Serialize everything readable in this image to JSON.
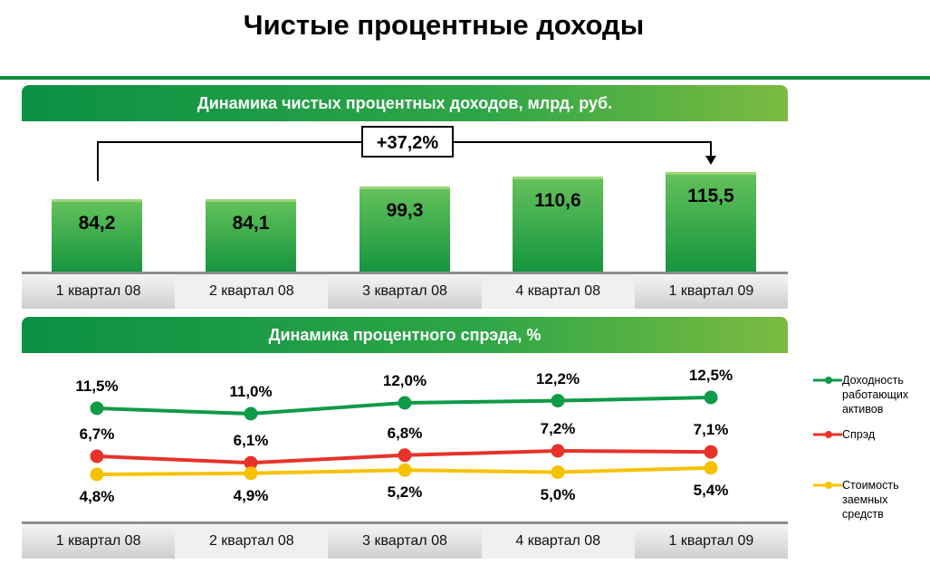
{
  "title": "Чистые процентные доходы",
  "chart_data": [
    {
      "type": "bar",
      "title": "Динамика чистых процентных доходов, млрд. руб.",
      "categories": [
        "1 квартал 08",
        "2 квартал 08",
        "3 квартал 08",
        "4 квартал 08",
        "1 квартал 09"
      ],
      "values": [
        84.2,
        84.1,
        99.3,
        110.6,
        115.5
      ],
      "value_labels": [
        "84,2",
        "84,1",
        "99,3",
        "110,6",
        "115,5"
      ],
      "annotation": "+37,2%",
      "color": "#1f9a44"
    },
    {
      "type": "line",
      "title": "Динамика процентного спрэда, %",
      "categories": [
        "1 квартал 08",
        "2 квартал 08",
        "3 квартал 08",
        "4 квартал 08",
        "1 квартал 09"
      ],
      "legend_position": "right",
      "series": [
        {
          "name": "Доходность работающих активов",
          "color": "#0f9a48",
          "values": [
            11.5,
            11.0,
            12.0,
            12.2,
            12.5
          ],
          "labels": [
            "11,5%",
            "11,0%",
            "12,0%",
            "12,2%",
            "12,5%"
          ]
        },
        {
          "name": "Спрэд",
          "color": "#e63329",
          "values": [
            6.7,
            6.1,
            6.8,
            7.2,
            7.1
          ],
          "labels": [
            "6,7%",
            "6,1%",
            "6,8%",
            "7,2%",
            "7,1%"
          ]
        },
        {
          "name": "Стоимость заемных средств",
          "color": "#f7c100",
          "values": [
            4.8,
            4.9,
            5.2,
            5.0,
            5.4
          ],
          "labels": [
            "4,8%",
            "4,9%",
            "5,2%",
            "5,0%",
            "5,4%"
          ]
        }
      ]
    }
  ]
}
